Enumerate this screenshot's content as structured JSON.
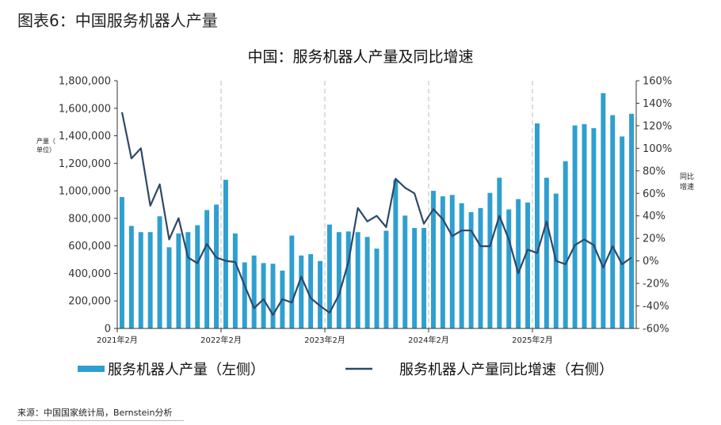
{
  "figure_title": "图表6：中国服务机器人产量",
  "source": "来源：中国国家统计局，Bernstein分析",
  "chart_data": {
    "type": "bar+line",
    "title": "中国：服务机器人产量及同比增速",
    "ylabel_left": "产量（单位）",
    "ylabel_right": "同比增速",
    "ylim_left": [
      0,
      1800000
    ],
    "ylim_right": [
      -60,
      160
    ],
    "yticks_left": [
      "0",
      "200,000",
      "400,000",
      "600,000",
      "800,000",
      "1,000,000",
      "1,200,000",
      "1,400,000",
      "1,600,000",
      "1,800,000"
    ],
    "yticks_right": [
      "-60%",
      "-40%",
      "-20%",
      "0%",
      "20%",
      "40%",
      "60%",
      "80%",
      "100%",
      "120%",
      "140%",
      "160%"
    ],
    "x_tick_labels": [
      {
        "index": 0,
        "label": "2021年2月"
      },
      {
        "index": 11,
        "label": "2022年2月"
      },
      {
        "index": 22,
        "label": "2023年2月"
      },
      {
        "index": 33,
        "label": "2024年2月"
      },
      {
        "index": 44,
        "label": "2025年2月"
      }
    ],
    "year_dividers": [
      11,
      22,
      33,
      44
    ],
    "grid": false,
    "legend_position": "bottom",
    "series": [
      {
        "name": "服务机器人产量（左侧）",
        "type": "bar",
        "axis": "left",
        "color": "#2f9fd0",
        "values": [
          955000,
          745000,
          700000,
          700000,
          815000,
          590000,
          690000,
          700000,
          750000,
          860000,
          900000,
          1080000,
          690000,
          480000,
          530000,
          475000,
          470000,
          420000,
          675000,
          530000,
          540000,
          490000,
          755000,
          700000,
          705000,
          700000,
          665000,
          580000,
          710000,
          1080000,
          820000,
          730000,
          730000,
          1000000,
          960000,
          970000,
          910000,
          845000,
          875000,
          985000,
          1095000,
          865000,
          940000,
          915000,
          1490000,
          1095000,
          980000,
          1215000,
          1475000,
          1485000,
          1455000,
          1710000,
          1550000,
          1395000,
          1560000
        ]
      },
      {
        "name": "服务机器人产量同比增速（右侧）",
        "type": "line",
        "axis": "right",
        "color": "#2d4868",
        "values": [
          132,
          91,
          100,
          49,
          68,
          19,
          38,
          3,
          -2,
          15,
          3,
          0,
          -1,
          -22,
          -42,
          -34,
          -48,
          -34,
          -37,
          -14,
          -33,
          -40,
          -46,
          -30,
          -1,
          47,
          35,
          40,
          30,
          73,
          65,
          60,
          33,
          46,
          37,
          22,
          27,
          27,
          13,
          13,
          40,
          19,
          -11,
          10,
          7,
          35,
          0,
          -3,
          14,
          19,
          14,
          -6,
          13,
          -3,
          3
        ]
      }
    ]
  }
}
